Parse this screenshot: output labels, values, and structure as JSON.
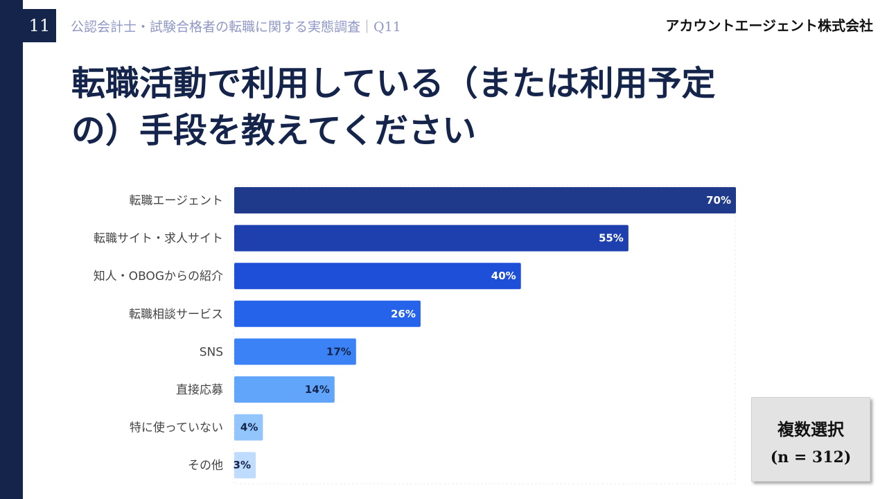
{
  "header": {
    "page_number": "11",
    "section_title": "公認会計士・試験合格者の転職に関する実態調査｜Q11",
    "company": "アカウントエージェント株式会社"
  },
  "title": {
    "line1": "転職活動で利用している（または利用予定",
    "line2": "の）手段を教えてください"
  },
  "note": {
    "line1": "複数選択",
    "line2": "(n = 312)"
  },
  "chart_data": {
    "type": "bar",
    "orientation": "horizontal",
    "categories": [
      "転職エージェント",
      "転職サイト・求人サイト",
      "知人・OBOGからの紹介",
      "転職相談サービス",
      "SNS",
      "直接応募",
      "特に使っていない",
      "その他"
    ],
    "values": [
      70,
      55,
      40,
      26,
      17,
      14,
      4,
      3
    ],
    "value_labels": [
      "70%",
      "55%",
      "40%",
      "26%",
      "17%",
      "14%",
      "4%",
      "3%"
    ],
    "xlim": [
      0,
      70
    ],
    "bar_colors": [
      "#1f3a8a",
      "#1e40af",
      "#1d4fd8",
      "#2563eb",
      "#3b82f6",
      "#60a5fa",
      "#93c5fd",
      "#bfdbfe"
    ],
    "label_colors": [
      "#ffffff",
      "#ffffff",
      "#ffffff",
      "#ffffff",
      "#14244a",
      "#14244a",
      "#14244a",
      "#14244a"
    ],
    "grid": false
  }
}
